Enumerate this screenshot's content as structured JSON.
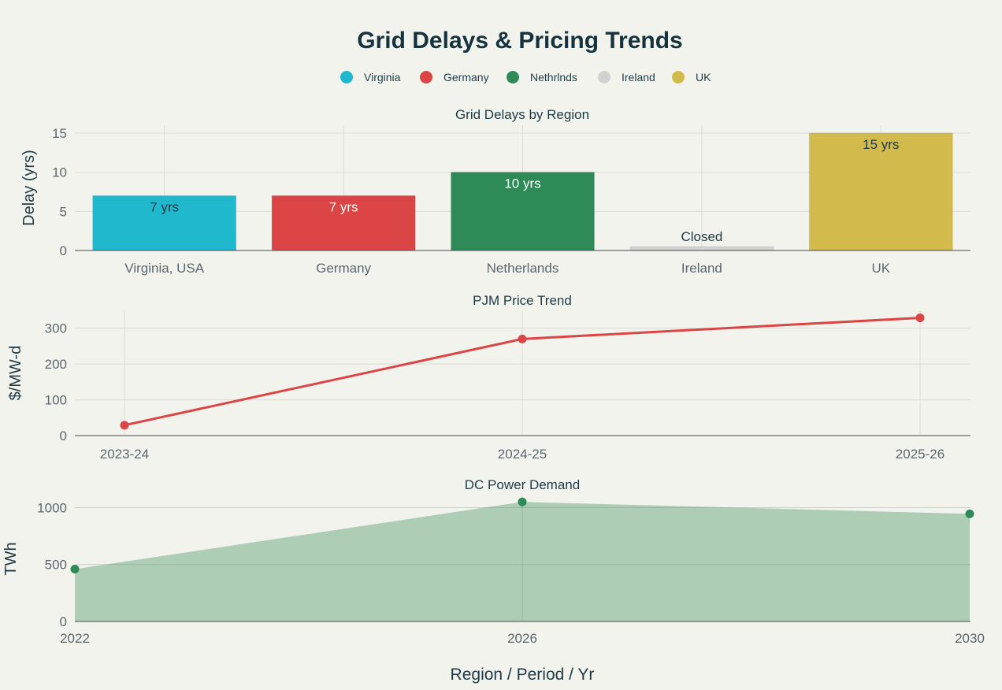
{
  "title": "Grid Delays & Pricing Trends",
  "x_axis_label": "Region / Period / Yr",
  "legend": [
    {
      "label": "Virginia",
      "color": "#1fb8cd"
    },
    {
      "label": "Germany",
      "color": "#db4545"
    },
    {
      "label": "Nethrlnds",
      "color": "#2e8b57"
    },
    {
      "label": "Ireland",
      "color": "#d2d2d2"
    },
    {
      "label": "UK",
      "color": "#d2ba4c"
    }
  ],
  "chart_data": [
    {
      "type": "bar",
      "title": "Grid Delays by Region",
      "ylabel": "Delay (yrs)",
      "categories": [
        "Virginia, USA",
        "Germany",
        "Netherlands",
        "Ireland",
        "UK"
      ],
      "values": [
        7,
        7,
        10,
        0.5,
        15
      ],
      "labels": [
        "7 yrs",
        "7 yrs",
        "10 yrs",
        "Closed",
        "15 yrs"
      ],
      "colors": [
        "#1fb8cd",
        "#db4545",
        "#2e8b57",
        "#d2d2d2",
        "#d2ba4c"
      ],
      "yticks": [
        "0",
        "5",
        "10",
        "15"
      ],
      "ylim": [
        0,
        16
      ]
    },
    {
      "type": "line",
      "title": "PJM Price Trend",
      "ylabel": "$/MW-d",
      "x": [
        "2023-24",
        "2024-25",
        "2025-26"
      ],
      "values": [
        29,
        270,
        329
      ],
      "color": "#db4545",
      "yticks": [
        "0",
        "100",
        "200",
        "300"
      ],
      "ylim": [
        0,
        350
      ]
    },
    {
      "type": "area",
      "title": "DC Power Demand",
      "ylabel": "TWh",
      "x": [
        "2022",
        "2026",
        "2030"
      ],
      "values": [
        460,
        1050,
        945
      ],
      "color": "#2e8b57",
      "fill": "#aecdb5",
      "yticks": [
        "0",
        "500",
        "1000"
      ],
      "ylim": [
        0,
        1100
      ]
    }
  ]
}
